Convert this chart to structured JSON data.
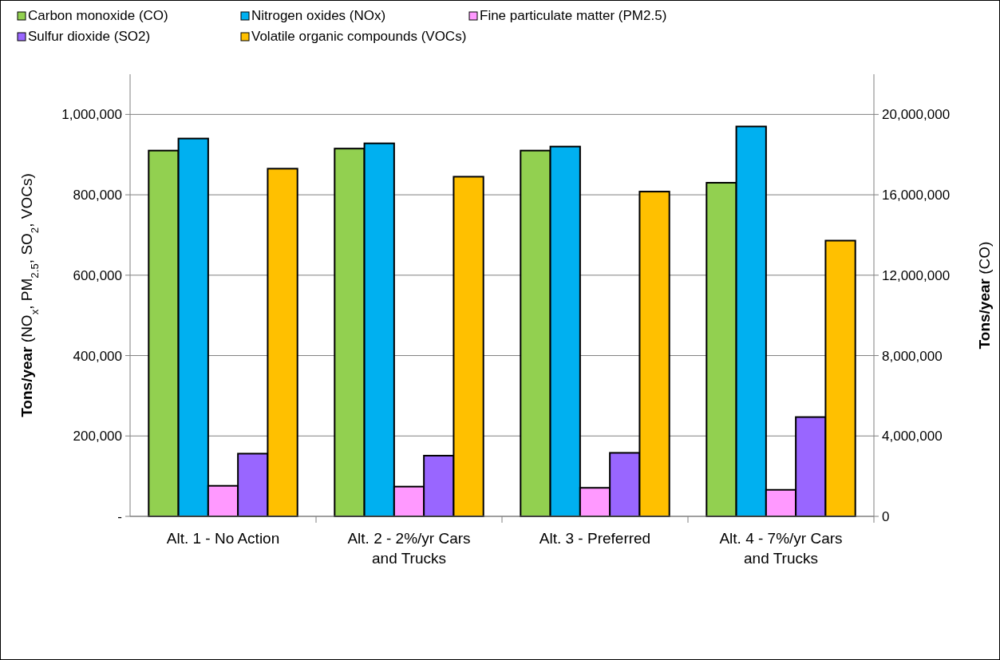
{
  "chart_data": {
    "type": "bar",
    "categories": [
      "Alt. 1 - No Action",
      "Alt. 2 - 2%/yr Cars and Trucks",
      "Alt. 3 - Preferred",
      "Alt. 4 - 7%/yr Cars and Trucks"
    ],
    "series": [
      {
        "name": "Carbon monoxide (CO)",
        "color": "#92d050",
        "axis": "y2",
        "values": [
          18200000,
          18300000,
          18200000,
          16600000
        ]
      },
      {
        "name": "Nitrogen oxides (NOx)",
        "color": "#00b0f0",
        "values": [
          940000,
          928000,
          920000,
          970000
        ]
      },
      {
        "name": "Fine particulate matter (PM2.5)",
        "color": "#ff99ff",
        "values": [
          76000,
          74000,
          71000,
          66000
        ]
      },
      {
        "name": "Sulfur dioxide (SO2)",
        "color": "#9966ff",
        "values": [
          156000,
          151000,
          158000,
          247000
        ]
      },
      {
        "name": "Volatile organic compounds (VOCs)",
        "color": "#ffc000",
        "values": [
          865000,
          845000,
          808000,
          686000
        ]
      }
    ],
    "ylabel": "Tons/year (NO$_{x}$, PM$_{2.5}$, SO$_{2}$, VOCs)",
    "y2label": "Tons/year (CO)",
    "ylim": [
      0,
      1100000
    ],
    "yticks": [
      {
        "value": 0,
        "label": "-"
      },
      {
        "value": 200000,
        "label": "200,000"
      },
      {
        "value": 400000,
        "label": "400,000"
      },
      {
        "value": 600000,
        "label": "600,000"
      },
      {
        "value": 800000,
        "label": "800,000"
      },
      {
        "value": 1000000,
        "label": "1,000,000"
      }
    ],
    "y2lim": [
      0,
      22000000
    ],
    "y2ticks": [
      0,
      {
        "value": 4000000,
        "label": "4,000,000"
      },
      {
        "value": 8000000,
        "label": "8,000,000"
      },
      {
        "value": 12000000,
        "label": "12,000,000"
      },
      {
        "value": 16000000,
        "label": "16,000,000"
      },
      {
        "value": 20000000,
        "label": "20,000,000"
      }
    ],
    "grid": "y",
    "legend": "top"
  }
}
